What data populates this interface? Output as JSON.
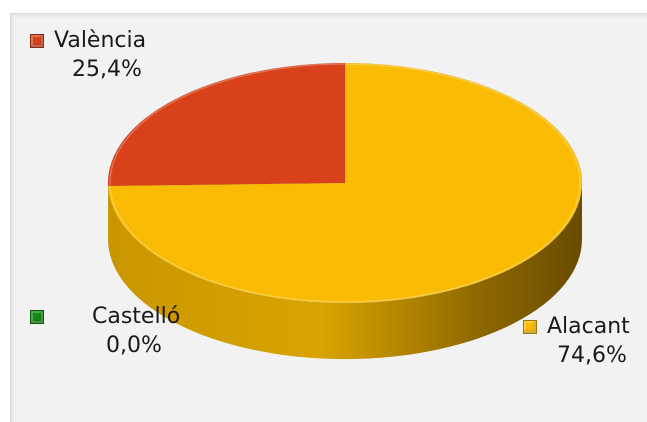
{
  "chart_data": {
    "type": "pie",
    "style": "3d",
    "slices": [
      {
        "label": "València",
        "value": 25.4,
        "value_label": "25,4%",
        "color": "#d8411a",
        "side_color": "#8e2a10"
      },
      {
        "label": "Castelló",
        "value": 0.0,
        "value_label": "0,0%",
        "color": "#138a13",
        "side_color": "#0b550b"
      },
      {
        "label": "Alacant",
        "value": 74.6,
        "value_label": "74,6%",
        "color": "#f9bb03",
        "side_color": "#a87c00"
      }
    ]
  }
}
